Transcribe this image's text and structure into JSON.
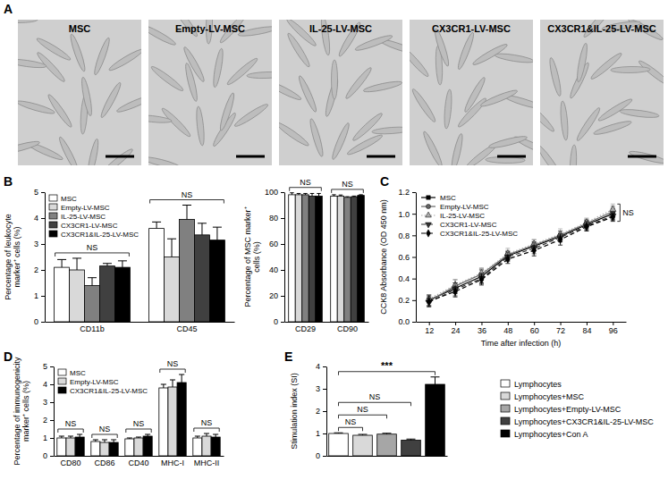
{
  "chart_data": [
    {
      "type": "image",
      "title": "A",
      "categories": [
        "MSC",
        "Empty-LV-MSC",
        "IL-25-LV-MSC",
        "CX3CR1-LV-MSC",
        "CX3CR1&IL-25-LV-MSC"
      ]
    },
    {
      "type": "bar",
      "title": "B",
      "ylabel": "Percentage of leukocyte marker⁺ cells (%)",
      "categories": [
        "CD11b",
        "CD45"
      ],
      "series": [
        {
          "name": "MSC",
          "color": "#ffffff",
          "values": [
            2.1,
            3.6
          ],
          "errors": [
            0.3,
            0.25
          ]
        },
        {
          "name": "Empty-LV-MSC",
          "color": "#d9d9d9",
          "values": [
            2.0,
            2.5
          ],
          "errors": [
            0.45,
            0.7
          ]
        },
        {
          "name": "IL-25-LV-MSC",
          "color": "#808080",
          "values": [
            1.4,
            3.95
          ],
          "errors": [
            0.3,
            0.55
          ]
        },
        {
          "name": "CX3CR1-LV-MSC",
          "color": "#404040",
          "values": [
            2.15,
            3.35
          ],
          "errors": [
            0.1,
            0.45
          ]
        },
        {
          "name": "CX3CR1&IL-25-LV-MSC",
          "color": "#000000",
          "values": [
            2.1,
            3.15
          ],
          "errors": [
            0.25,
            0.5
          ]
        }
      ],
      "ylim": [
        0,
        5
      ],
      "yticks": [
        0,
        1,
        2,
        3,
        4,
        5
      ],
      "legend": "upper left",
      "annotations": [
        "NS",
        "NS"
      ]
    },
    {
      "type": "bar",
      "ylabel": "Percentage of MSC marker⁺ cells (%)",
      "categories": [
        "CD29",
        "CD90"
      ],
      "series": [
        {
          "color": "#ffffff",
          "values": [
            98,
            97
          ],
          "errors": [
            1.5,
            1
          ]
        },
        {
          "color": "#d9d9d9",
          "values": [
            98,
            97
          ],
          "errors": [
            1,
            0.8
          ]
        },
        {
          "color": "#808080",
          "values": [
            98,
            96
          ],
          "errors": [
            1,
            0.5
          ]
        },
        {
          "color": "#404040",
          "values": [
            97,
            96.5
          ],
          "errors": [
            2,
            0.5
          ]
        },
        {
          "color": "#000000",
          "values": [
            97,
            97.5
          ],
          "errors": [
            2,
            0.5
          ]
        }
      ],
      "ylim": [
        0,
        100
      ],
      "yticks": [
        0,
        20,
        40,
        60,
        80,
        100
      ],
      "annotations": [
        "NS",
        "NS"
      ]
    },
    {
      "type": "line",
      "title": "C",
      "xlabel": "Time after infection (h)",
      "ylabel": "CCK8 Absorbance (OD 450 nm)",
      "x": [
        12,
        24,
        36,
        48,
        60,
        72,
        84,
        96
      ],
      "series": [
        {
          "name": "MSC",
          "color": "#000000",
          "marker": "square",
          "line_style": "solid",
          "values": [
            0.2,
            0.31,
            0.42,
            0.61,
            0.7,
            0.79,
            0.9,
            1.0
          ],
          "errors": [
            0.05,
            0.05,
            0.06,
            0.04,
            0.04,
            0.05,
            0.04,
            0.05
          ]
        },
        {
          "name": "Empty-LV-MSC",
          "color": "#666666",
          "marker": "circle",
          "line_style": "solid",
          "values": [
            0.19,
            0.33,
            0.44,
            0.62,
            0.71,
            0.8,
            0.91,
            1.02
          ],
          "errors": [
            0.04,
            0.06,
            0.05,
            0.04,
            0.05,
            0.04,
            0.04,
            0.05
          ]
        },
        {
          "name": "IL-25-LV-MSC",
          "color": "#aaaaaa",
          "marker": "triangle-up",
          "line_style": "dotted",
          "values": [
            0.21,
            0.34,
            0.45,
            0.63,
            0.72,
            0.81,
            0.92,
            1.04
          ],
          "errors": [
            0.04,
            0.05,
            0.05,
            0.05,
            0.04,
            0.05,
            0.04,
            0.05
          ]
        },
        {
          "name": "CX3CR1-LV-MSC",
          "color": "#333333",
          "marker": "triangle-down",
          "line_style": "dashed",
          "values": [
            0.18,
            0.3,
            0.4,
            0.6,
            0.68,
            0.78,
            0.89,
            0.98
          ],
          "errors": [
            0.04,
            0.06,
            0.05,
            0.04,
            0.05,
            0.04,
            0.04,
            0.04
          ]
        },
        {
          "name": "CX3CR1&IL-25-LV-MSC",
          "color": "#000000",
          "marker": "diamond",
          "line_style": "dashed",
          "values": [
            0.19,
            0.28,
            0.39,
            0.58,
            0.66,
            0.76,
            0.88,
            0.97
          ],
          "errors": [
            0.05,
            0.05,
            0.05,
            0.04,
            0.05,
            0.05,
            0.04,
            0.04
          ]
        }
      ],
      "xlim": [
        6,
        102
      ],
      "xticks": [
        12,
        24,
        36,
        48,
        60,
        72,
        84,
        96
      ],
      "ylim": [
        0,
        1.2
      ],
      "yticks": [
        {
          "value": 0,
          "label": "0.0"
        },
        0.2,
        0.4,
        0.6,
        0.8,
        {
          "value": 1,
          "label": "1.0"
        },
        1.2
      ],
      "legend": "upper left",
      "annotations": [
        "NS"
      ]
    },
    {
      "type": "bar",
      "title": "D",
      "ylabel": "Percentage of immunogenicity marker⁺ cells (%)",
      "categories": [
        "CD80",
        "CD86",
        "CD40",
        "MHC-I",
        "MHC-II"
      ],
      "series": [
        {
          "name": "MSC",
          "color": "#ffffff",
          "values": [
            1.0,
            0.8,
            0.95,
            3.8,
            1.0
          ],
          "errors": [
            0.1,
            0.1,
            0.05,
            0.2,
            0.1
          ]
        },
        {
          "name": "Empty-LV-MSC",
          "color": "#d9d9d9",
          "values": [
            1.0,
            0.75,
            1.0,
            3.85,
            1.1
          ],
          "errors": [
            0.1,
            0.15,
            0.05,
            0.4,
            0.15
          ]
        },
        {
          "name": "CX3CR1&IL-25-LV-MSC",
          "color": "#000000",
          "values": [
            1.05,
            0.75,
            1.1,
            4.1,
            1.05
          ],
          "errors": [
            0.15,
            0.15,
            0.1,
            0.45,
            0.15
          ]
        }
      ],
      "ylim": [
        0,
        5
      ],
      "yticks": [
        0,
        1,
        2,
        3,
        4,
        5
      ],
      "legend": "upper left",
      "annotations": [
        "NS",
        "NS",
        "NS",
        "NS",
        "NS"
      ]
    },
    {
      "type": "bar",
      "title": "E",
      "ylabel": "Stimulation index (SI)",
      "categories": [
        "Lymphocytes",
        "Lymphocytes+MSC",
        "Lymphocytes+Empty-LV-MSC",
        "Lymphocytes+CX3CR1&IL-25-LV-MSC",
        "Lymphocytes+Con A"
      ],
      "values": [
        1.0,
        0.92,
        0.97,
        0.7,
        3.2
      ],
      "errors": [
        0.03,
        0.04,
        0.04,
        0.05,
        0.33
      ],
      "colors": [
        "#ffffff",
        "#d9d9d9",
        "#a6a6a6",
        "#404040",
        "#000000"
      ],
      "ylim": [
        0,
        4
      ],
      "yticks": [
        0,
        1,
        2,
        3,
        4
      ],
      "tick_labels": "y",
      "legend": "right",
      "annotations": [
        "NS",
        "NS",
        "NS",
        "***"
      ]
    }
  ]
}
